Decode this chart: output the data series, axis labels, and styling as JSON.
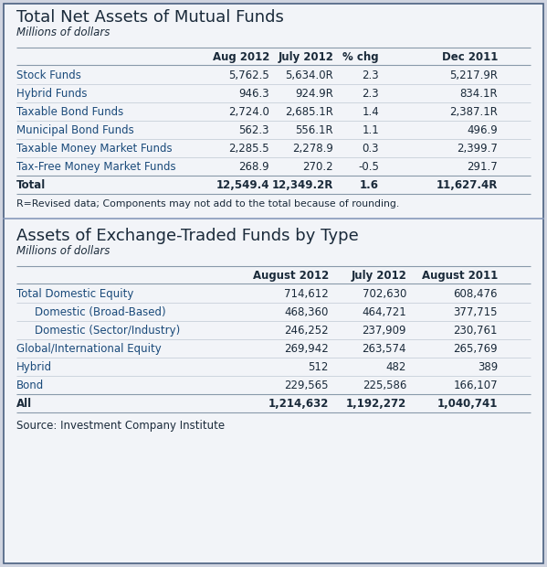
{
  "bg_outer": "#d0d4e0",
  "bg_panel": "#f5f6fa",
  "panel_grad_top": "#e8eaf2",
  "panel_grad_bot": "#f8f9fc",
  "border_color": "#4a6080",
  "title1": "Total Net Assets of Mutual Funds",
  "subtitle1": "Millions of dollars",
  "table1_headers": [
    "",
    "Aug 2012",
    "July 2012",
    "% chg",
    "Dec 2011"
  ],
  "table1_col_rights": [
    170,
    295,
    365,
    415,
    545
  ],
  "table1_rows": [
    [
      "Stock Funds",
      "5,762.5",
      "5,634.0R",
      "2.3",
      "5,217.9R"
    ],
    [
      "Hybrid Funds",
      "946.3",
      "924.9R",
      "2.3",
      "834.1R"
    ],
    [
      "Taxable Bond Funds",
      "2,724.0",
      "2,685.1R",
      "1.4",
      "2,387.1R"
    ],
    [
      "Municipal Bond Funds",
      "562.3",
      "556.1R",
      "1.1",
      "496.9"
    ],
    [
      "Taxable Money Market Funds",
      "2,285.5",
      "2,278.9",
      "0.3",
      "2,399.7"
    ],
    [
      "Tax-Free Money Market Funds",
      "268.9",
      "270.2",
      "-0.5",
      "291.7"
    ]
  ],
  "table1_total": [
    "Total",
    "12,549.4",
    "12,349.2R",
    "1.6",
    "11,627.4R"
  ],
  "table1_footnote": "R=Revised data; Components may not add to the total because of rounding.",
  "title2": "Assets of Exchange-Traded Funds by Type",
  "subtitle2": "Millions of dollars",
  "table2_headers": [
    "",
    "August 2012",
    "July 2012",
    "August 2011"
  ],
  "table2_col_rights": [
    195,
    360,
    445,
    545
  ],
  "table2_rows": [
    [
      "Total Domestic Equity",
      "714,612",
      "702,630",
      "608,476",
      0
    ],
    [
      "Domestic (Broad-Based)",
      "468,360",
      "464,721",
      "377,715",
      20
    ],
    [
      "Domestic (Sector/Industry)",
      "246,252",
      "237,909",
      "230,761",
      20
    ],
    [
      "Global/International Equity",
      "269,942",
      "263,574",
      "265,769",
      0
    ],
    [
      "Hybrid",
      "512",
      "482",
      "389",
      0
    ],
    [
      "Bond",
      "229,565",
      "225,586",
      "166,107",
      0
    ]
  ],
  "table2_total": [
    "All",
    "1,214,632",
    "1,192,272",
    "1,040,741"
  ],
  "source": "Source: Investment Company Institute",
  "title_color": "#1a2a3a",
  "subtitle_color": "#1a2a3a",
  "header_text_color": "#1a2a3a",
  "row_label_color": "#1a4a7a",
  "data_text_color": "#1a2a3a",
  "total_color": "#1a2a3a",
  "footnote_color": "#1a2a3a",
  "source_color": "#1a2a3a",
  "line_color_heavy": "#8899aa",
  "line_color_light": "#c8d0da",
  "divider_color": "#8899bb"
}
